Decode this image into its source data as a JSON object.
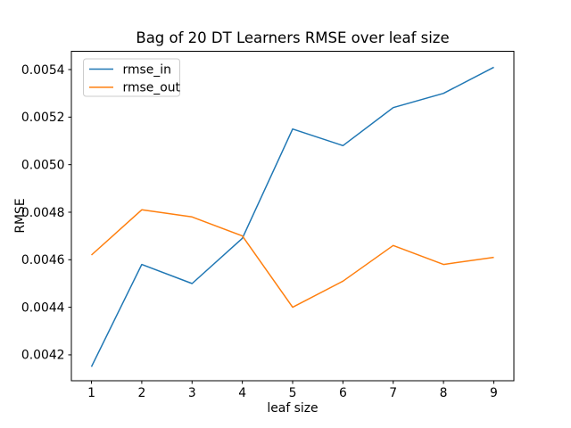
{
  "figure": {
    "background": "#ffffff"
  },
  "chart_data": {
    "type": "line",
    "title": "Bag of 20 DT Learners RMSE over leaf size",
    "xlabel": "leaf size",
    "ylabel": "RMSE",
    "x": [
      1,
      2,
      3,
      4,
      5,
      6,
      7,
      8,
      9
    ],
    "series": [
      {
        "name": "rmse_in",
        "color": "#1f77b4",
        "values": [
          0.00415,
          0.00458,
          0.0045,
          0.00469,
          0.00515,
          0.00508,
          0.00524,
          0.0053,
          0.00541
        ]
      },
      {
        "name": "rmse_out",
        "color": "#ff7f0e",
        "values": [
          0.00462,
          0.00481,
          0.00478,
          0.0047,
          0.0044,
          0.00451,
          0.00466,
          0.00458,
          0.00461
        ]
      }
    ],
    "xlim": [
      0.6,
      9.4
    ],
    "ylim": [
      0.004091,
      0.005477
    ],
    "xticks": [
      1,
      2,
      3,
      4,
      5,
      6,
      7,
      8,
      9
    ],
    "xtick_labels": [
      "1",
      "2",
      "3",
      "4",
      "5",
      "6",
      "7",
      "8",
      "9"
    ],
    "yticks": [
      0.0042,
      0.0044,
      0.0046,
      0.0048,
      0.005,
      0.0052,
      0.0054
    ],
    "ytick_labels": [
      "0.0042",
      "0.0044",
      "0.0046",
      "0.0048",
      "0.0050",
      "0.0052",
      "0.0054"
    ],
    "grid": false,
    "legend": {
      "position": "upper left",
      "entries": [
        "rmse_in",
        "rmse_out"
      ]
    },
    "line_width": 1.5,
    "axis_color": "#000000",
    "text_color": "#000000",
    "legend_border_color": "#cccccc",
    "legend_face_color": "#ffffff"
  }
}
